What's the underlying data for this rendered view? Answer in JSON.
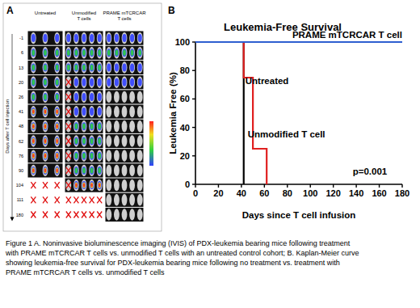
{
  "panel_a": {
    "letter": "A",
    "axis_label": "Days after T cell injection",
    "days": [
      -1,
      6,
      13,
      20,
      26,
      41,
      48,
      62,
      76,
      90,
      104,
      111,
      180
    ],
    "columns": [
      {
        "label": [
          "Untreated"
        ],
        "mice": 3,
        "signal": [
          1,
          2,
          2,
          2,
          2,
          3,
          3,
          3,
          3,
          3,
          null,
          null,
          null
        ],
        "dead": [
          0,
          0,
          0,
          0,
          0,
          0,
          0,
          0,
          0,
          0,
          3,
          3,
          3
        ]
      },
      {
        "label": [
          "Unmodified",
          "T cells"
        ],
        "mice": 5,
        "signal": [
          1,
          2,
          2,
          1,
          1,
          1,
          2,
          2,
          2,
          2,
          3,
          null,
          null
        ],
        "dead": [
          0,
          0,
          0,
          1,
          1,
          1,
          1,
          1,
          1,
          1,
          1,
          5,
          5
        ]
      },
      {
        "label": [
          "PRAME mTCRCAR",
          "T cells"
        ],
        "mice": 5,
        "signal": [
          1,
          2,
          1,
          1,
          0,
          0,
          0,
          0,
          0,
          0,
          0,
          0,
          0
        ],
        "dead": [
          0,
          0,
          0,
          0,
          0,
          0,
          0,
          0,
          0,
          0,
          0,
          0,
          0
        ]
      }
    ]
  },
  "chart_data": [
    {
      "type": "step",
      "panel": "B",
      "title": "Leukemia-Free Survival",
      "x_label": "Days since T cell infusion",
      "y_label": "Leukemia Free (%)",
      "xlim": [
        0,
        180
      ],
      "xticks": [
        0,
        20,
        40,
        60,
        80,
        100,
        120,
        140,
        160,
        180
      ],
      "ylim": [
        0,
        100
      ],
      "yticks": [
        0,
        20,
        40,
        60,
        80,
        100
      ],
      "grid": false,
      "series": [
        {
          "name": "PRAME mTCRCAR T cell",
          "color": "#2f5fd0",
          "x": [
            0,
            180
          ],
          "values": [
            100,
            100
          ]
        },
        {
          "name": "Untreated",
          "color": "#000000",
          "x": [
            0,
            42
          ],
          "values": [
            100,
            0
          ]
        },
        {
          "name": "Unmodified T cell",
          "color": "#e02020",
          "x": [
            0,
            42,
            50,
            62
          ],
          "values": [
            100,
            75,
            25,
            0
          ]
        }
      ],
      "annotations": [
        "p=0.001"
      ]
    }
  ],
  "caption": [
    "Figure 1 A. Noninvasive bioluminescence imaging (IVIS) of PDX-leukemia bearing mice following treatment",
    "with PRAME mTCRCAR T cells vs. unmodified T cells with an untreated control cohort; B. Kaplan-Meier curve",
    "showing leukemia-free survival for PDX-leukemia bearing mice following no treatment vs. treatment with",
    "PRAME mTCRCAR T cells vs. unmodified T cells"
  ]
}
